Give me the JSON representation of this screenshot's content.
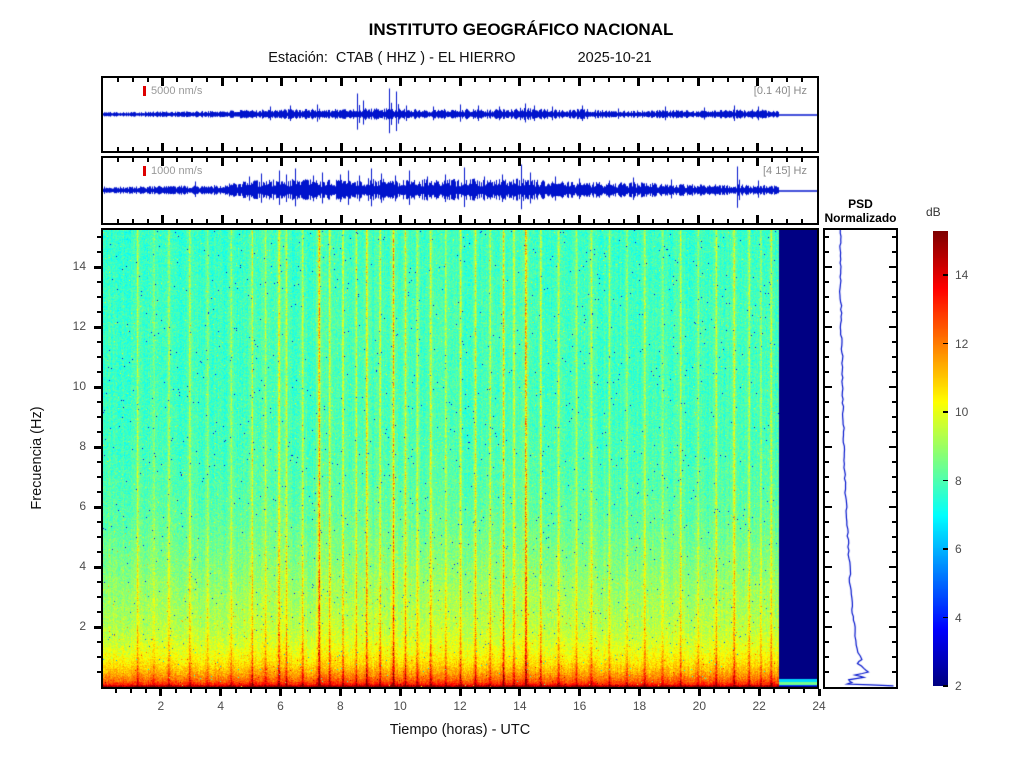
{
  "header": {
    "title": "INSTITUTO GEOGRÁFICO NACIONAL",
    "station_label": "Estación:  CTAB ( HHZ ) - EL HIERRO",
    "date": "2025-10-21"
  },
  "axes": {
    "xlabel": "Tiempo (horas) - UTC",
    "ylabel": "Frecuencia  (Hz)"
  },
  "psd": {
    "title_line1": "PSD",
    "title_line2": "Normalizado"
  },
  "colorbar": {
    "label": "dB",
    "tick_labels": [
      2,
      4,
      6,
      8,
      10,
      12,
      14
    ],
    "db_range": [
      2,
      15.3
    ],
    "colormap": "jet"
  },
  "colors": {
    "trace": "#0013cc",
    "scale_bar": "#dd0000",
    "tick_label": "#4d4d4d",
    "no_data_navy": "#000084"
  },
  "chart_data": [
    {
      "type": "line",
      "id": "seismogram-broadband",
      "scale_label": "5000 nm/s",
      "band_label": "[0.1 40] Hz",
      "x_range_hours": [
        0,
        24
      ],
      "data_end_hour": 22.7,
      "envelope": [
        [
          0,
          1.5
        ],
        [
          1,
          1.6
        ],
        [
          2,
          2
        ],
        [
          3,
          2
        ],
        [
          4,
          2.5
        ],
        [
          5,
          3
        ],
        [
          5.5,
          3.8
        ],
        [
          6,
          3.4
        ],
        [
          7,
          3.8
        ],
        [
          8,
          3.8
        ],
        [
          9,
          4.2
        ],
        [
          10,
          3.8
        ],
        [
          11,
          3.4
        ],
        [
          12,
          3.8
        ],
        [
          13,
          3.4
        ],
        [
          14,
          4.4
        ],
        [
          15,
          3.6
        ],
        [
          16,
          3.8
        ],
        [
          17,
          2.6
        ],
        [
          18,
          2.6
        ],
        [
          19,
          3
        ],
        [
          20,
          2.6
        ],
        [
          21,
          3
        ],
        [
          22,
          3.4
        ],
        [
          22.7,
          2.4
        ]
      ],
      "spikes": [
        [
          5.6,
          8
        ],
        [
          6.3,
          9
        ],
        [
          7.2,
          10
        ],
        [
          8.55,
          21
        ],
        [
          8.75,
          14
        ],
        [
          9.6,
          26
        ],
        [
          9.85,
          23
        ],
        [
          10.2,
          9
        ],
        [
          11.1,
          8
        ],
        [
          12.0,
          10
        ],
        [
          12.6,
          9
        ],
        [
          13.3,
          8
        ],
        [
          14.2,
          11
        ],
        [
          14.5,
          9
        ],
        [
          15.1,
          8
        ],
        [
          16.1,
          9
        ],
        [
          17.3,
          6
        ],
        [
          18.9,
          8
        ],
        [
          20.2,
          7
        ],
        [
          21.2,
          9
        ],
        [
          22.0,
          8
        ]
      ]
    },
    {
      "type": "line",
      "id": "seismogram-band",
      "scale_label": "1000 nm/s",
      "band_label": "[4 15] Hz",
      "x_range_hours": [
        0,
        24
      ],
      "data_end_hour": 22.7,
      "envelope": [
        [
          0,
          2.5
        ],
        [
          1,
          2.5
        ],
        [
          2,
          3
        ],
        [
          3,
          3.2
        ],
        [
          4,
          4
        ],
        [
          4.5,
          5.5
        ],
        [
          5,
          6.5
        ],
        [
          5.5,
          7.5
        ],
        [
          6,
          7
        ],
        [
          6.5,
          8
        ],
        [
          7,
          7.5
        ],
        [
          7.5,
          7
        ],
        [
          8,
          8
        ],
        [
          8.5,
          7.5
        ],
        [
          9,
          8.5
        ],
        [
          9.5,
          8
        ],
        [
          10,
          7.5
        ],
        [
          10.5,
          8.5
        ],
        [
          11,
          7
        ],
        [
          11.5,
          8
        ],
        [
          12,
          7.5
        ],
        [
          12.5,
          8.5
        ],
        [
          13,
          7
        ],
        [
          13.5,
          8
        ],
        [
          14,
          8.5
        ],
        [
          14.5,
          7.5
        ],
        [
          15,
          6.5
        ],
        [
          16,
          6
        ],
        [
          17,
          5.5
        ],
        [
          18,
          5.5
        ],
        [
          19,
          4.5
        ],
        [
          20,
          4.5
        ],
        [
          21,
          4
        ],
        [
          22,
          3.8
        ],
        [
          22.7,
          3.2
        ]
      ],
      "spikes": [
        [
          3.1,
          9
        ],
        [
          4.9,
          14
        ],
        [
          5.3,
          17
        ],
        [
          5.9,
          20
        ],
        [
          6.15,
          16
        ],
        [
          6.45,
          22
        ],
        [
          7.05,
          15
        ],
        [
          7.35,
          18
        ],
        [
          7.95,
          16
        ],
        [
          8.25,
          20
        ],
        [
          8.6,
          15
        ],
        [
          9.0,
          22
        ],
        [
          9.35,
          17
        ],
        [
          9.8,
          15
        ],
        [
          10.3,
          20
        ],
        [
          10.9,
          14
        ],
        [
          11.5,
          16
        ],
        [
          12.15,
          23
        ],
        [
          12.8,
          14
        ],
        [
          13.4,
          16
        ],
        [
          14.05,
          26
        ],
        [
          14.35,
          18
        ],
        [
          15.2,
          14
        ],
        [
          16.0,
          12
        ],
        [
          17.0,
          10
        ],
        [
          17.8,
          13
        ],
        [
          19.1,
          11
        ],
        [
          21.3,
          24
        ],
        [
          22.0,
          10
        ]
      ]
    },
    {
      "type": "heatmap",
      "id": "spectrogram",
      "xlabel": "Tiempo (horas) - UTC",
      "ylabel": "Frecuencia  (Hz)",
      "colormap": "jet",
      "x_range_hours": [
        0,
        24
      ],
      "y_range_hz": [
        0,
        15.25
      ],
      "db_range": [
        2,
        15.3
      ],
      "data_end_hour": 22.7,
      "x_tick_labels": [
        2,
        4,
        6,
        8,
        10,
        12,
        14,
        16,
        18,
        20,
        22,
        24
      ],
      "y_tick_labels": [
        2,
        4,
        6,
        8,
        10,
        12,
        14
      ],
      "x_tick_minor_step": 0.5,
      "y_tick_minor_step": 0.5,
      "freq_db_profile": [
        [
          0.03,
          15.0
        ],
        [
          0.1,
          13.2
        ],
        [
          0.2,
          12.4
        ],
        [
          0.35,
          11.8
        ],
        [
          0.5,
          11.3
        ],
        [
          0.7,
          10.8
        ],
        [
          0.9,
          10.4
        ],
        [
          1.2,
          10.0
        ],
        [
          1.6,
          9.6
        ],
        [
          2.0,
          9.35
        ],
        [
          2.5,
          9.15
        ],
        [
          3.0,
          9.0
        ],
        [
          3.5,
          8.85
        ],
        [
          4.0,
          8.65
        ],
        [
          5.0,
          8.35
        ],
        [
          6.0,
          8.1
        ],
        [
          7.0,
          7.95
        ],
        [
          8.0,
          7.85
        ],
        [
          9.0,
          7.8
        ],
        [
          10.0,
          7.75
        ],
        [
          11.0,
          7.75
        ],
        [
          12.0,
          7.8
        ],
        [
          13.0,
          7.75
        ],
        [
          14.0,
          7.7
        ],
        [
          15.25,
          7.65
        ]
      ],
      "events_hour_strength_db": [
        [
          1.15,
          1.1
        ],
        [
          1.7,
          0.7
        ],
        [
          2.2,
          0.9
        ],
        [
          2.9,
          1.1
        ],
        [
          3.5,
          0.8
        ],
        [
          4.3,
          1.0
        ],
        [
          5.0,
          1.4
        ],
        [
          5.45,
          1.1
        ],
        [
          5.9,
          1.7
        ],
        [
          6.15,
          1.3
        ],
        [
          6.7,
          1.2
        ],
        [
          7.25,
          2.4
        ],
        [
          7.6,
          1.4
        ],
        [
          8.05,
          1.5
        ],
        [
          8.5,
          1.3
        ],
        [
          8.85,
          1.7
        ],
        [
          9.3,
          1.4
        ],
        [
          9.75,
          2.2
        ],
        [
          10.15,
          1.5
        ],
        [
          10.55,
          1.2
        ],
        [
          11.0,
          1.4
        ],
        [
          11.5,
          1.1
        ],
        [
          12.0,
          1.3
        ],
        [
          12.5,
          1.5
        ],
        [
          13.0,
          1.2
        ],
        [
          13.45,
          1.9
        ],
        [
          13.8,
          1.3
        ],
        [
          14.2,
          2.4
        ],
        [
          14.7,
          1.4
        ],
        [
          15.3,
          1.1
        ],
        [
          15.9,
          0.9
        ],
        [
          16.4,
          1.2
        ],
        [
          17.0,
          0.9
        ],
        [
          17.6,
          1.0
        ],
        [
          18.2,
          1.2
        ],
        [
          18.8,
          0.9
        ],
        [
          19.4,
          1.1
        ],
        [
          20.0,
          0.9
        ],
        [
          20.6,
          1.3
        ],
        [
          21.2,
          1.5
        ],
        [
          21.7,
          1.1
        ],
        [
          22.1,
          0.9
        ],
        [
          22.45,
          1.2
        ]
      ],
      "noise_db": 0.85
    },
    {
      "type": "line",
      "id": "psd-normalized",
      "title": "PSD Normalizado",
      "y_range_hz": [
        0,
        15.25
      ],
      "points_norm_freq": [
        [
          0.21,
          15.25
        ],
        [
          0.215,
          14.5
        ],
        [
          0.22,
          13.8
        ],
        [
          0.21,
          13.2
        ],
        [
          0.225,
          12.6
        ],
        [
          0.22,
          12.0
        ],
        [
          0.235,
          11.4
        ],
        [
          0.24,
          10.8
        ],
        [
          0.235,
          10.2
        ],
        [
          0.245,
          9.6
        ],
        [
          0.25,
          9.0
        ],
        [
          0.26,
          8.4
        ],
        [
          0.27,
          7.8
        ],
        [
          0.275,
          7.2
        ],
        [
          0.285,
          6.6
        ],
        [
          0.3,
          6.0
        ],
        [
          0.31,
          5.4
        ],
        [
          0.325,
          4.8
        ],
        [
          0.34,
          4.3
        ],
        [
          0.355,
          3.9
        ],
        [
          0.35,
          3.5
        ],
        [
          0.37,
          3.1
        ],
        [
          0.385,
          2.7
        ],
        [
          0.4,
          2.35
        ],
        [
          0.42,
          2.0
        ],
        [
          0.435,
          1.7
        ],
        [
          0.455,
          1.4
        ],
        [
          0.48,
          1.15
        ],
        [
          0.52,
          0.92
        ],
        [
          0.47,
          0.78
        ],
        [
          0.55,
          0.62
        ],
        [
          0.63,
          0.5
        ],
        [
          0.42,
          0.4
        ],
        [
          0.56,
          0.32
        ],
        [
          0.33,
          0.24
        ],
        [
          0.38,
          0.15
        ],
        [
          0.3,
          0.1
        ],
        [
          0.99,
          0.04
        ]
      ]
    }
  ]
}
